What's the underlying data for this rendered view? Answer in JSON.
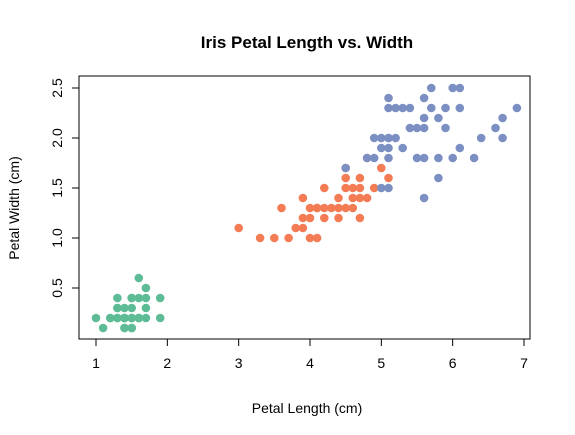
{
  "chart_data": {
    "type": "scatter",
    "title": "Iris Petal Length vs. Width",
    "xlabel": "Petal Length (cm)",
    "ylabel": "Petal Width (cm)",
    "xlim": [
      0.8,
      7.2
    ],
    "ylim": [
      0.1,
      2.5
    ],
    "xticks": [
      "1",
      "2",
      "3",
      "4",
      "5",
      "6",
      "7"
    ],
    "yticks": [
      "0.5",
      "1.0",
      "1.5",
      "2.0",
      "2.5"
    ],
    "grid": false,
    "legend": "none",
    "series": [
      {
        "color": "#5dbb95",
        "points": [
          [
            1.0,
            0.2
          ],
          [
            1.1,
            0.1
          ],
          [
            1.2,
            0.2
          ],
          [
            1.2,
            0.2
          ],
          [
            1.3,
            0.2
          ],
          [
            1.3,
            0.2
          ],
          [
            1.3,
            0.3
          ],
          [
            1.3,
            0.4
          ],
          [
            1.3,
            0.3
          ],
          [
            1.4,
            0.2
          ],
          [
            1.4,
            0.1
          ],
          [
            1.4,
            0.3
          ],
          [
            1.4,
            0.2
          ],
          [
            1.4,
            0.2
          ],
          [
            1.4,
            0.1
          ],
          [
            1.4,
            0.2
          ],
          [
            1.5,
            0.2
          ],
          [
            1.5,
            0.4
          ],
          [
            1.5,
            0.1
          ],
          [
            1.5,
            0.2
          ],
          [
            1.5,
            0.3
          ],
          [
            1.5,
            0.2
          ],
          [
            1.5,
            0.4
          ],
          [
            1.5,
            0.1
          ],
          [
            1.6,
            0.2
          ],
          [
            1.6,
            0.6
          ],
          [
            1.6,
            0.4
          ],
          [
            1.6,
            0.2
          ],
          [
            1.6,
            0.2
          ],
          [
            1.7,
            0.3
          ],
          [
            1.7,
            0.4
          ],
          [
            1.7,
            0.5
          ],
          [
            1.7,
            0.2
          ],
          [
            1.9,
            0.2
          ],
          [
            1.9,
            0.4
          ]
        ]
      },
      {
        "color": "#f47c55",
        "points": [
          [
            3.0,
            1.1
          ],
          [
            3.3,
            1.0
          ],
          [
            3.5,
            1.0
          ],
          [
            3.6,
            1.3
          ],
          [
            3.7,
            1.0
          ],
          [
            3.8,
            1.1
          ],
          [
            3.9,
            1.1
          ],
          [
            3.9,
            1.2
          ],
          [
            3.9,
            1.4
          ],
          [
            4.0,
            1.0
          ],
          [
            4.0,
            1.2
          ],
          [
            4.0,
            1.3
          ],
          [
            4.1,
            1.0
          ],
          [
            4.1,
            1.3
          ],
          [
            4.1,
            1.3
          ],
          [
            4.2,
            1.3
          ],
          [
            4.2,
            1.5
          ],
          [
            4.2,
            1.2
          ],
          [
            4.3,
            1.3
          ],
          [
            4.4,
            1.3
          ],
          [
            4.4,
            1.2
          ],
          [
            4.4,
            1.4
          ],
          [
            4.5,
            1.5
          ],
          [
            4.5,
            1.6
          ],
          [
            4.5,
            1.3
          ],
          [
            4.5,
            1.7
          ],
          [
            4.6,
            1.4
          ],
          [
            4.6,
            1.5
          ],
          [
            4.6,
            1.3
          ],
          [
            4.7,
            1.2
          ],
          [
            4.7,
            1.4
          ],
          [
            4.7,
            1.5
          ],
          [
            4.7,
            1.6
          ],
          [
            4.8,
            1.4
          ],
          [
            4.8,
            1.8
          ],
          [
            4.9,
            1.5
          ],
          [
            5.0,
            1.7
          ],
          [
            5.1,
            1.6
          ]
        ]
      },
      {
        "color": "#7b8fc3",
        "points": [
          [
            4.5,
            1.7
          ],
          [
            4.8,
            1.8
          ],
          [
            4.9,
            1.8
          ],
          [
            4.9,
            2.0
          ],
          [
            5.0,
            1.5
          ],
          [
            5.0,
            2.0
          ],
          [
            5.0,
            1.9
          ],
          [
            5.1,
            1.5
          ],
          [
            5.1,
            1.9
          ],
          [
            5.1,
            2.0
          ],
          [
            5.1,
            2.3
          ],
          [
            5.1,
            2.4
          ],
          [
            5.1,
            1.8
          ],
          [
            5.1,
            2.0
          ],
          [
            5.2,
            2.3
          ],
          [
            5.2,
            2.0
          ],
          [
            5.3,
            1.9
          ],
          [
            5.3,
            2.3
          ],
          [
            5.4,
            2.1
          ],
          [
            5.4,
            2.3
          ],
          [
            5.5,
            1.8
          ],
          [
            5.5,
            2.1
          ],
          [
            5.6,
            2.4
          ],
          [
            5.6,
            2.2
          ],
          [
            5.6,
            2.1
          ],
          [
            5.6,
            1.8
          ],
          [
            5.6,
            1.4
          ],
          [
            5.7,
            2.3
          ],
          [
            5.7,
            2.5
          ],
          [
            5.8,
            2.2
          ],
          [
            5.8,
            1.8
          ],
          [
            5.8,
            1.6
          ],
          [
            5.9,
            2.3
          ],
          [
            5.9,
            2.1
          ],
          [
            6.0,
            2.5
          ],
          [
            6.0,
            1.8
          ],
          [
            6.1,
            2.5
          ],
          [
            6.1,
            2.3
          ],
          [
            6.1,
            1.9
          ],
          [
            6.3,
            1.8
          ],
          [
            6.4,
            2.0
          ],
          [
            6.6,
            2.1
          ],
          [
            6.7,
            2.2
          ],
          [
            6.7,
            2.0
          ],
          [
            6.9,
            2.3
          ]
        ]
      }
    ]
  }
}
